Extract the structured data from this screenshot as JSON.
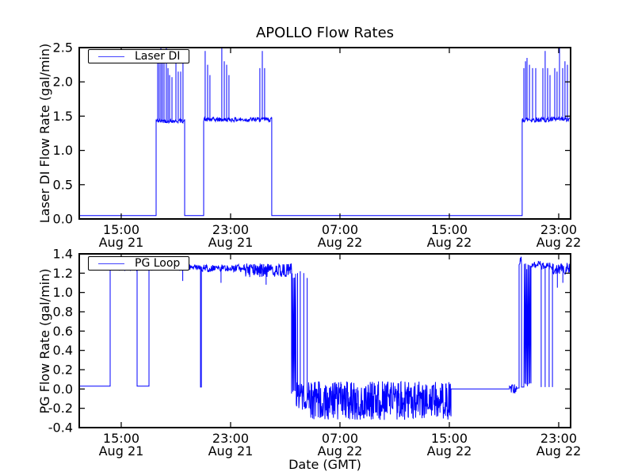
{
  "figure": {
    "title": "APOLLO Flow Rates",
    "background": "#ffffff",
    "axis_color": "#000000",
    "line_color": "#0000ff"
  },
  "chart_data": [
    {
      "type": "line",
      "subplot": "top",
      "title": "APOLLO Flow Rates",
      "ylabel": "Laser DI Flow Rate (gal/min)",
      "xlabel": "",
      "legend": "Laser DI",
      "legend_loc": "upper left",
      "grid": false,
      "x_unit": "hours since Aug 21 00:00 (GMT)",
      "xlim": [
        11.93,
        47.87
      ],
      "ylim": [
        0.0,
        2.5
      ],
      "yticks": [
        "0.0",
        "0.5",
        "1.0",
        "1.5",
        "2.0",
        "2.5"
      ],
      "xticks": [
        {
          "h": 15,
          "time": "15:00",
          "date": "Aug 21"
        },
        {
          "h": 23,
          "time": "23:00",
          "date": "Aug 21"
        },
        {
          "h": 31,
          "time": "07:00",
          "date": "Aug 22"
        },
        {
          "h": 39,
          "time": "15:00",
          "date": "Aug 22"
        },
        {
          "h": 47,
          "time": "23:00",
          "date": "Aug 22"
        }
      ],
      "series": [
        {
          "name": "Laser DI",
          "color": "#0000ff",
          "segments": [
            {
              "mode": "flat",
              "x0": 11.93,
              "x1": 17.55,
              "y": 0.05
            },
            {
              "mode": "noise",
              "x0": 17.55,
              "x1": 19.64,
              "base": 1.43,
              "amp": 0.03,
              "spikes": [
                [
                  17.67,
                  2.3
                ],
                [
                  17.78,
                  2.45
                ],
                [
                  17.9,
                  2.5
                ],
                [
                  18.01,
                  2.45
                ],
                [
                  18.13,
                  2.3
                ],
                [
                  18.3,
                  2.5
                ],
                [
                  18.42,
                  2.2
                ],
                [
                  18.54,
                  2.1
                ],
                [
                  18.71,
                  2.07
                ],
                [
                  19.0,
                  2.3
                ],
                [
                  19.17,
                  2.15
                ],
                [
                  19.35,
                  2.15
                ],
                [
                  19.52,
                  2.45
                ]
              ]
            },
            {
              "mode": "flat",
              "x0": 19.64,
              "x1": 21.03,
              "y": 0.05
            },
            {
              "mode": "noise",
              "x0": 21.03,
              "x1": 26.01,
              "base": 1.45,
              "amp": 0.035,
              "spikes": [
                [
                  21.14,
                  2.45
                ],
                [
                  21.32,
                  2.25
                ],
                [
                  21.49,
                  2.1
                ],
                [
                  22.36,
                  2.5
                ],
                [
                  22.54,
                  2.3
                ],
                [
                  22.71,
                  2.25
                ],
                [
                  22.88,
                  2.1
                ],
                [
                  25.14,
                  2.2
                ],
                [
                  25.32,
                  2.45
                ],
                [
                  25.49,
                  2.2
                ]
              ]
            },
            {
              "mode": "flat",
              "x0": 26.01,
              "x1": 44.33,
              "y": 0.05
            },
            {
              "mode": "noise",
              "x0": 44.33,
              "x1": 47.87,
              "base": 1.45,
              "amp": 0.04,
              "spikes": [
                [
                  44.45,
                  2.2
                ],
                [
                  44.57,
                  2.3
                ],
                [
                  44.68,
                  2.35
                ],
                [
                  44.86,
                  2.25
                ],
                [
                  45.09,
                  2.2
                ],
                [
                  45.32,
                  2.2
                ],
                [
                  45.84,
                  2.2
                ],
                [
                  46.01,
                  2.45
                ],
                [
                  46.19,
                  2.2
                ],
                [
                  46.36,
                  2.1
                ],
                [
                  46.71,
                  2.2
                ],
                [
                  46.88,
                  2.15
                ],
                [
                  47.06,
                  2.5
                ],
                [
                  47.29,
                  2.2
                ],
                [
                  47.46,
                  2.3
                ],
                [
                  47.64,
                  2.25
                ]
              ]
            }
          ]
        }
      ]
    },
    {
      "type": "line",
      "subplot": "bottom",
      "title": "",
      "ylabel": "PG Flow Rate (gal/min)",
      "xlabel": "Date (GMT)",
      "legend": "PG Loop",
      "legend_loc": "upper left",
      "grid": false,
      "x_unit": "hours since Aug 21 00:00 (GMT)",
      "xlim": [
        11.93,
        47.87
      ],
      "ylim": [
        -0.4,
        1.4
      ],
      "yticks": [
        "-0.4",
        "-0.2",
        "0.0",
        "0.2",
        "0.4",
        "0.6",
        "0.8",
        "1.0",
        "1.2",
        "1.4"
      ],
      "xticks": [
        {
          "h": 15,
          "time": "15:00",
          "date": "Aug 21"
        },
        {
          "h": 23,
          "time": "23:00",
          "date": "Aug 21"
        },
        {
          "h": 31,
          "time": "07:00",
          "date": "Aug 22"
        },
        {
          "h": 39,
          "time": "15:00",
          "date": "Aug 22"
        },
        {
          "h": 47,
          "time": "23:00",
          "date": "Aug 22"
        }
      ],
      "series": [
        {
          "name": "PG Loop",
          "color": "#0000ff",
          "segments": [
            {
              "mode": "flat",
              "x0": 11.93,
              "x1": 14.19,
              "y": 0.03
            },
            {
              "mode": "noise",
              "x0": 14.19,
              "x1": 16.16,
              "base": 1.25,
              "amp": 0.02
            },
            {
              "mode": "flat",
              "x0": 16.16,
              "x1": 17.03,
              "y": 0.03
            },
            {
              "mode": "noise",
              "x0": 17.03,
              "x1": 20.8,
              "base": 1.26,
              "amp": 0.03,
              "spikes": [
                [
                  19.5,
                  1.12
                ]
              ]
            },
            {
              "mode": "flat",
              "x0": 20.8,
              "x1": 20.86,
              "y": 0.02
            },
            {
              "mode": "noise",
              "x0": 20.86,
              "x1": 24.0,
              "base": 1.25,
              "amp": 0.04,
              "spikes": [
                [
                  22.3,
                  1.1
                ]
              ]
            },
            {
              "mode": "noise",
              "x0": 24.0,
              "x1": 27.46,
              "base": 1.23,
              "amp": 0.07,
              "density": 2.2,
              "spikes": [
                [
                  25.6,
                  1.08
                ]
              ]
            },
            {
              "mode": "osc",
              "x0": 27.46,
              "x1": 27.8,
              "hi": 1.2,
              "lo": -0.05
            },
            {
              "mode": "noise",
              "x0": 27.8,
              "x1": 28.74,
              "base": -0.08,
              "amp": 0.15,
              "spikes": [
                [
                  27.9,
                  1.2
                ],
                [
                  28.1,
                  1.22
                ],
                [
                  28.35,
                  1.2
                ],
                [
                  28.6,
                  1.15
                ]
              ]
            },
            {
              "mode": "noise",
              "x0": 28.74,
              "x1": 39.12,
              "base": -0.12,
              "amp": 0.2,
              "density": 2.6
            },
            {
              "mode": "flat",
              "x0": 39.12,
              "x1": 43.4,
              "y": 0.0
            },
            {
              "mode": "noise",
              "x0": 43.4,
              "x1": 43.93,
              "base": 0.0,
              "amp": 0.05
            },
            {
              "mode": "flat",
              "x0": 43.93,
              "x1": 44.1,
              "y": 0.01
            },
            {
              "mode": "noise",
              "x0": 44.1,
              "x1": 44.28,
              "base": 1.33,
              "amp": 0.05
            },
            {
              "mode": "flat",
              "x0": 44.28,
              "x1": 44.45,
              "y": 0.02
            },
            {
              "mode": "osc",
              "x0": 44.45,
              "x1": 44.97,
              "hi": 1.3,
              "lo": 0.02
            },
            {
              "mode": "noise",
              "x0": 44.97,
              "x1": 45.67,
              "base": 1.29,
              "amp": 0.04
            },
            {
              "mode": "noise",
              "x0": 45.67,
              "x1": 46.6,
              "base": 1.27,
              "amp": 0.04,
              "spikes": [
                [
                  45.72,
                  0.02
                ],
                [
                  46.01,
                  0.02
                ],
                [
                  46.3,
                  0.02
                ],
                [
                  46.54,
                  0.02
                ]
              ]
            },
            {
              "mode": "noise",
              "x0": 46.6,
              "x1": 47.87,
              "base": 1.25,
              "amp": 0.06,
              "spikes": [
                [
                  46.9,
                  1.05
                ],
                [
                  47.3,
                  1.1
                ]
              ]
            }
          ]
        }
      ]
    }
  ]
}
